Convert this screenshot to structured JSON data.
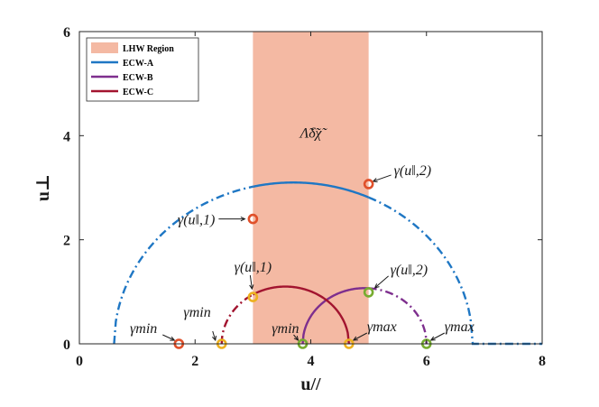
{
  "chart_data": {
    "type": "line",
    "xlabel": "u//",
    "ylabel": "u⊥",
    "xlim": [
      0,
      8
    ],
    "ylim": [
      0,
      6
    ],
    "x_ticks": [
      "0",
      "2",
      "4",
      "6",
      "8"
    ],
    "y_ticks": [
      "0",
      "2",
      "4",
      "6"
    ],
    "grid": false,
    "legend_position": "top-left",
    "region": {
      "name": "LHW Region",
      "x": [
        3,
        5
      ],
      "color": "#f4b9a3",
      "label": "Λ̃δ̃χ̃"
    },
    "series": [
      {
        "name": "ECW-A",
        "color": "#1f77c4",
        "center": 3.7,
        "radius": 3.1,
        "solid_range": [
          3,
          5
        ],
        "dashed_ranges": [
          [
            0.6,
            3
          ],
          [
            5,
            8
          ]
        ],
        "x_end": 8,
        "points": [
          {
            "x": 1.72,
            "y": 0,
            "color": "#e0502a"
          },
          {
            "x": 3.0,
            "y": 2.4,
            "color": "#e0502a"
          },
          {
            "x": 5.0,
            "y": 3.07,
            "color": "#e0502a"
          }
        ]
      },
      {
        "name": "ECW-B",
        "color": "#7e2f8e",
        "center": 4.93,
        "radius": 1.07,
        "solid_range": [
          3.86,
          5
        ],
        "dashed_ranges": [
          [
            5,
            6
          ]
        ],
        "x_end": 6,
        "points": [
          {
            "x": 3.86,
            "y": 0,
            "color": "#77ac30"
          },
          {
            "x": 5.0,
            "y": 0.99,
            "color": "#77ac30"
          },
          {
            "x": 6.0,
            "y": 0,
            "color": "#77ac30"
          }
        ]
      },
      {
        "name": "ECW-C",
        "color": "#a2142f",
        "center": 3.56,
        "radius": 1.1,
        "solid_range": [
          3,
          4.66
        ],
        "dashed_ranges": [
          [
            2.46,
            3
          ]
        ],
        "x_end": 4.66,
        "points": [
          {
            "x": 2.46,
            "y": 0,
            "color": "#edb120"
          },
          {
            "x": 3.0,
            "y": 0.9,
            "color": "#edb120"
          },
          {
            "x": 4.66,
            "y": 0,
            "color": "#edb120"
          }
        ]
      }
    ],
    "annotations": [
      {
        "text": "γ(u‖,2)",
        "x": 5.0,
        "y": 3.07
      },
      {
        "text": "γ(u‖,1)",
        "x": 3.0,
        "y": 2.4
      },
      {
        "text": "γ(u‖,1)",
        "x": 3.0,
        "y": 0.9
      },
      {
        "text": "γ(u‖,2)",
        "x": 5.0,
        "y": 0.99
      },
      {
        "text": "γmin",
        "x": 1.72,
        "y": 0
      },
      {
        "text": "γmin",
        "x": 2.46,
        "y": 0
      },
      {
        "text": "γmin",
        "x": 3.86,
        "y": 0
      },
      {
        "text": "γmax",
        "x": 4.66,
        "y": 0
      },
      {
        "text": "γmax",
        "x": 6.0,
        "y": 0
      }
    ]
  }
}
